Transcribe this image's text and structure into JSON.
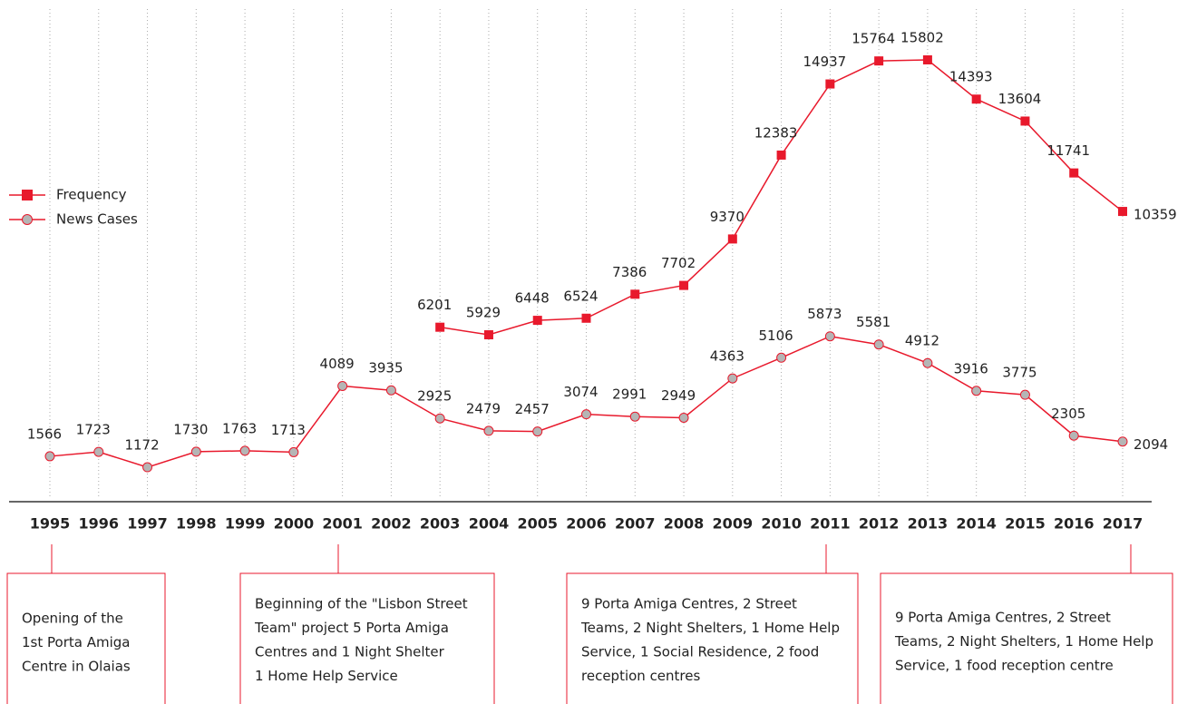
{
  "chart_data": {
    "type": "line",
    "categories": [
      "1995",
      "1996",
      "1997",
      "1998",
      "1999",
      "2000",
      "2001",
      "2002",
      "2003",
      "2004",
      "2005",
      "2006",
      "2007",
      "2008",
      "2009",
      "2010",
      "2011",
      "2012",
      "2013",
      "2014",
      "2015",
      "2016",
      "2017"
    ],
    "series": [
      {
        "name": "Frequency",
        "color": "#e8192c",
        "marker": "square",
        "values": [
          null,
          null,
          null,
          null,
          null,
          null,
          null,
          null,
          6201,
          5929,
          6448,
          6524,
          7386,
          7702,
          9370,
          12383,
          14937,
          15764,
          15802,
          14393,
          13604,
          11741,
          10359
        ]
      },
      {
        "name": "News Cases",
        "color": "#e8192c",
        "marker": "circle",
        "marker_fill": "#b5b5b5",
        "values": [
          1566,
          1723,
          1172,
          1730,
          1763,
          1713,
          4089,
          3935,
          2925,
          2479,
          2457,
          3074,
          2991,
          2949,
          4363,
          5106,
          5873,
          5581,
          4912,
          3916,
          3775,
          2305,
          2094
        ]
      }
    ],
    "grid": true,
    "legend": "left",
    "annotations": [
      {
        "lines": [
          "Opening of the",
          "1st Porta Amiga",
          "Centre in Olaias"
        ]
      },
      {
        "lines": [
          "Beginning of the \"Lisbon Street",
          "Team\" project 5 Porta Amiga",
          "Centres and 1 Night Shelter",
          "1 Home Help Service"
        ]
      },
      {
        "lines": [
          "9 Porta Amiga Centres, 2 Street",
          "Teams, 2 Night Shelters, 1 Home Help",
          "Service, 1 Social Residence, 2 food",
          "reception centres"
        ]
      },
      {
        "lines": [
          "9 Porta Amiga Centres, 2 Street",
          "Teams, 2 Night Shelters, 1 Home Help",
          "Service, 1 food reception centre"
        ]
      }
    ]
  }
}
